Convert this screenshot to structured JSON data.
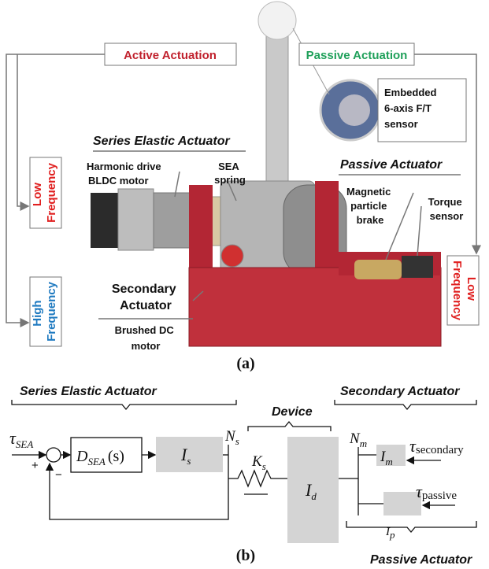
{
  "panel_a": {
    "active_actuation": "Active Actuation",
    "passive_actuation": "Passive Actuation",
    "ft_sensor": [
      "Embedded",
      "6-axis F/T",
      "sensor"
    ],
    "sea_title": "Series Elastic Actuator",
    "harmonic_drive": "Harmonic drive",
    "bldc_motor": "BLDC motor",
    "sea_spring": [
      "SEA",
      "spring"
    ],
    "passive_title": "Passive Actuator",
    "brake": [
      "Magnetic",
      "particle",
      "brake"
    ],
    "torque_sensor": [
      "Torque",
      "sensor"
    ],
    "low_freq_left": [
      "Low",
      "Frequency"
    ],
    "high_freq": [
      "High",
      "Frequency"
    ],
    "secondary": [
      "Secondary",
      "Actuator"
    ],
    "brushed_dc": [
      "Brushed DC",
      "motor"
    ],
    "low_freq_right": [
      "Low",
      "Frequency"
    ],
    "caption": "(a)"
  },
  "panel_b": {
    "sea_title": "Series Elastic Actuator",
    "device": "Device",
    "secondary_title": "Secondary Actuator",
    "passive_title": "Passive Actuator",
    "tau_sea": {
      "base": "τ",
      "sub": "SEA"
    },
    "plus": "+",
    "minus": "−",
    "controller": {
      "base": "D",
      "sub": "SEA",
      "arg": "(s)"
    },
    "i_s": {
      "base": "I",
      "sub": "s"
    },
    "n_s": {
      "base": "N",
      "sub": "s"
    },
    "k_s": {
      "base": "K",
      "sub": "s"
    },
    "i_d": {
      "base": "I",
      "sub": "d"
    },
    "n_m": {
      "base": "N",
      "sub": "m"
    },
    "i_m": {
      "base": "I",
      "sub": "m"
    },
    "tau_secondary": {
      "base": "τ",
      "sub": "secondary"
    },
    "tau_passive": {
      "base": "τ",
      "sub": "passive"
    },
    "i_p": {
      "base": "I",
      "sub": "p"
    },
    "caption": "(b)"
  }
}
